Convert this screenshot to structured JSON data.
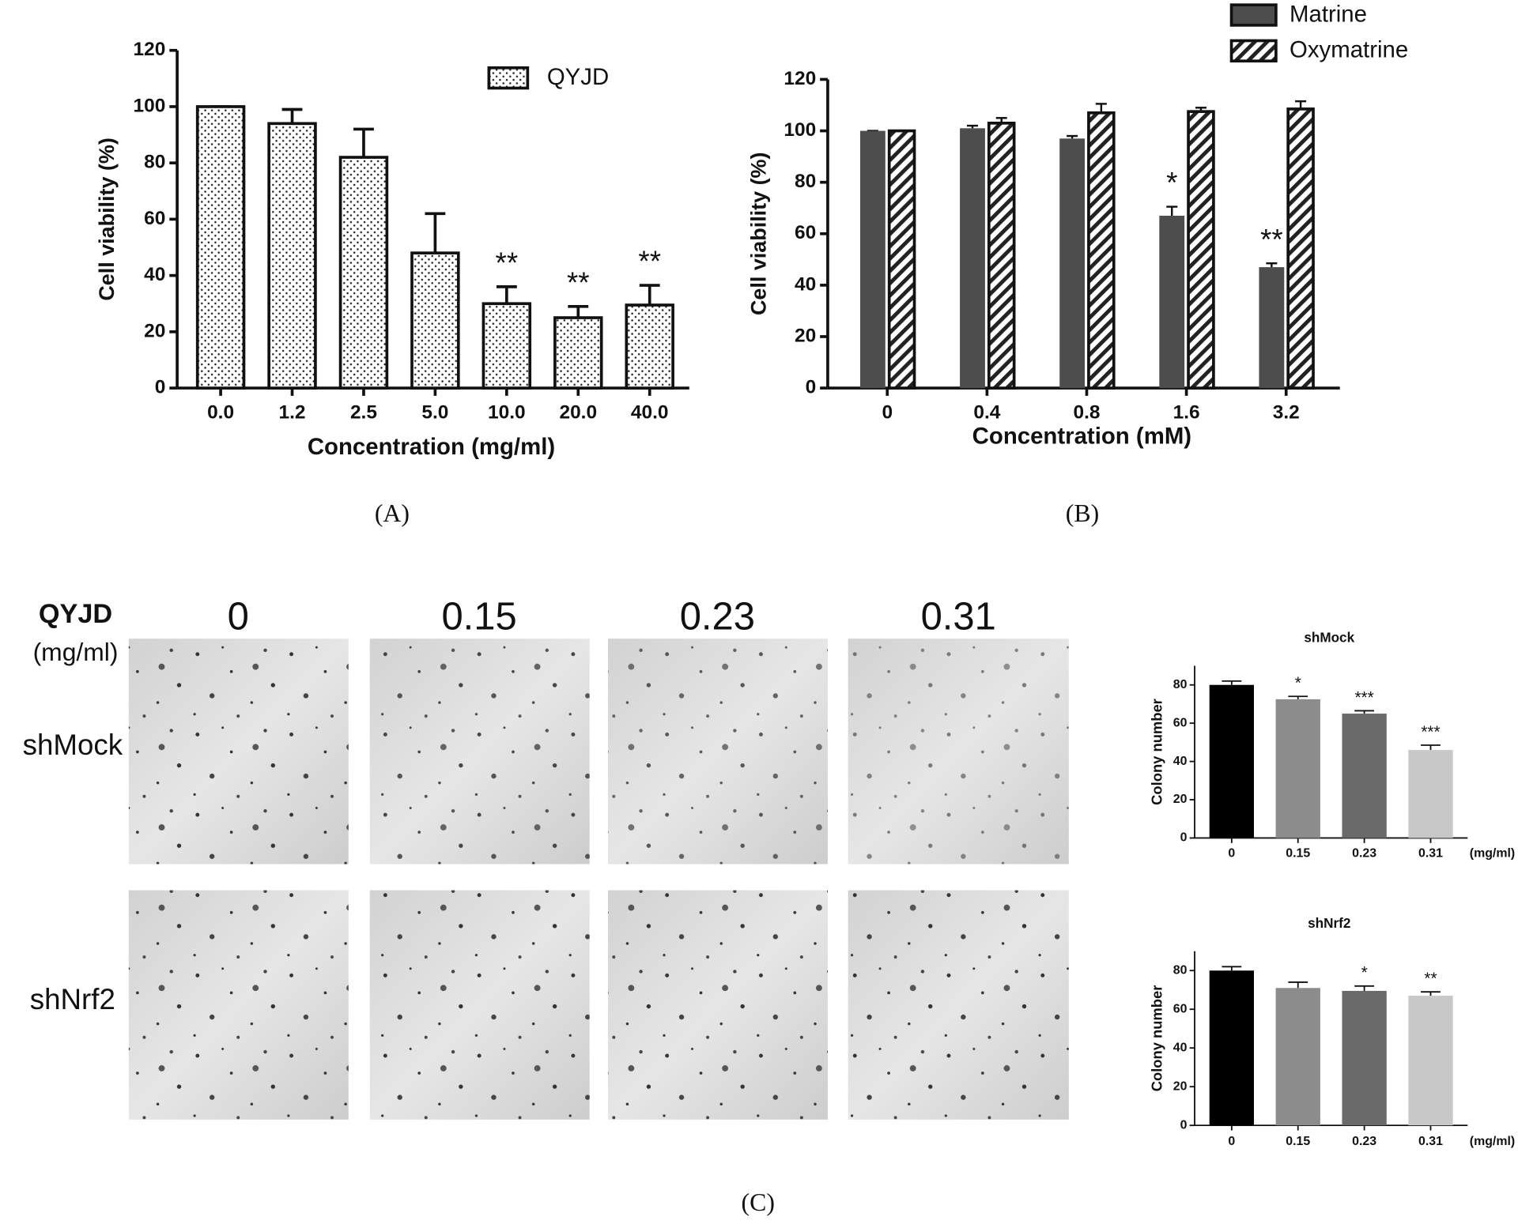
{
  "figure": {
    "panel_labels": [
      "(A)",
      "(B)",
      "(C)"
    ],
    "treatment": "QYJD",
    "unit": "(mg/ml)",
    "doses": [
      "0",
      "0.15",
      "0.23",
      "0.31"
    ],
    "rows": [
      "shMock",
      "shNrf2"
    ]
  },
  "chart_data": [
    {
      "type": "bar",
      "xlabel": "Concentration (mg/ml)",
      "ylabel": "Cell viability (%)",
      "categories": [
        "0.0",
        "1.2",
        "2.5",
        "5.0",
        "10.0",
        "20.0",
        "40.0"
      ],
      "series": [
        {
          "name": "QYJD",
          "color": "#ffffff",
          "pattern": "dots",
          "values": [
            100,
            94,
            82,
            48,
            30,
            25,
            29.5
          ],
          "errors": [
            0,
            5,
            10,
            14,
            6,
            4,
            7
          ],
          "annotations": [
            null,
            null,
            null,
            null,
            "**",
            "**",
            "**"
          ]
        }
      ],
      "ylim": [
        0,
        120
      ],
      "yticks": [
        0,
        20,
        40,
        60,
        80,
        100,
        120
      ],
      "legend": "top-right"
    },
    {
      "type": "bar",
      "xlabel": "Concentration (mM)",
      "ylabel": "Cell viability (%)",
      "categories": [
        "0",
        "0.4",
        "0.8",
        "1.6",
        "3.2"
      ],
      "series": [
        {
          "name": "Matrine",
          "color": "#4d4d4d",
          "values": [
            100,
            101,
            97,
            67,
            47
          ],
          "errors": [
            0,
            1,
            1,
            3.5,
            1.5
          ],
          "annotations": [
            null,
            null,
            null,
            "*",
            "**"
          ]
        },
        {
          "name": "Oxymatrine",
          "color": "#ffffff",
          "pattern": "hatch",
          "values": [
            100,
            103,
            107,
            107.5,
            108.5
          ],
          "errors": [
            0,
            2,
            3.5,
            1.5,
            3
          ]
        }
      ],
      "ylim": [
        0,
        120
      ],
      "yticks": [
        0,
        20,
        40,
        60,
        80,
        100,
        120
      ],
      "legend": "above"
    },
    {
      "type": "bar",
      "title": "shMock",
      "ylabel": "Colony number",
      "x_unit": "(mg/ml)",
      "categories": [
        "0",
        "0.15",
        "0.23",
        "0.31"
      ],
      "series": [
        {
          "colors": [
            "#000000",
            "#8c8c8c",
            "#6a6a6a",
            "#c8c8c8"
          ],
          "values": [
            80,
            72.5,
            65,
            46
          ],
          "errors": [
            2,
            1.5,
            1.5,
            2.5
          ],
          "annotations": [
            null,
            "*",
            "***",
            "***"
          ]
        }
      ],
      "ylim": [
        0,
        90
      ],
      "yticks": [
        0,
        20,
        40,
        60,
        80
      ]
    },
    {
      "type": "bar",
      "title": "shNrf2",
      "ylabel": "Colony number",
      "x_unit": "(mg/ml)",
      "categories": [
        "0",
        "0.15",
        "0.23",
        "0.31"
      ],
      "series": [
        {
          "colors": [
            "#000000",
            "#8c8c8c",
            "#6a6a6a",
            "#c8c8c8"
          ],
          "values": [
            80,
            71,
            69.5,
            67
          ],
          "errors": [
            2,
            3,
            2.5,
            2
          ],
          "annotations": [
            null,
            null,
            "*",
            "**"
          ]
        }
      ],
      "ylim": [
        0,
        90
      ],
      "yticks": [
        0,
        20,
        40,
        60,
        80
      ]
    }
  ]
}
